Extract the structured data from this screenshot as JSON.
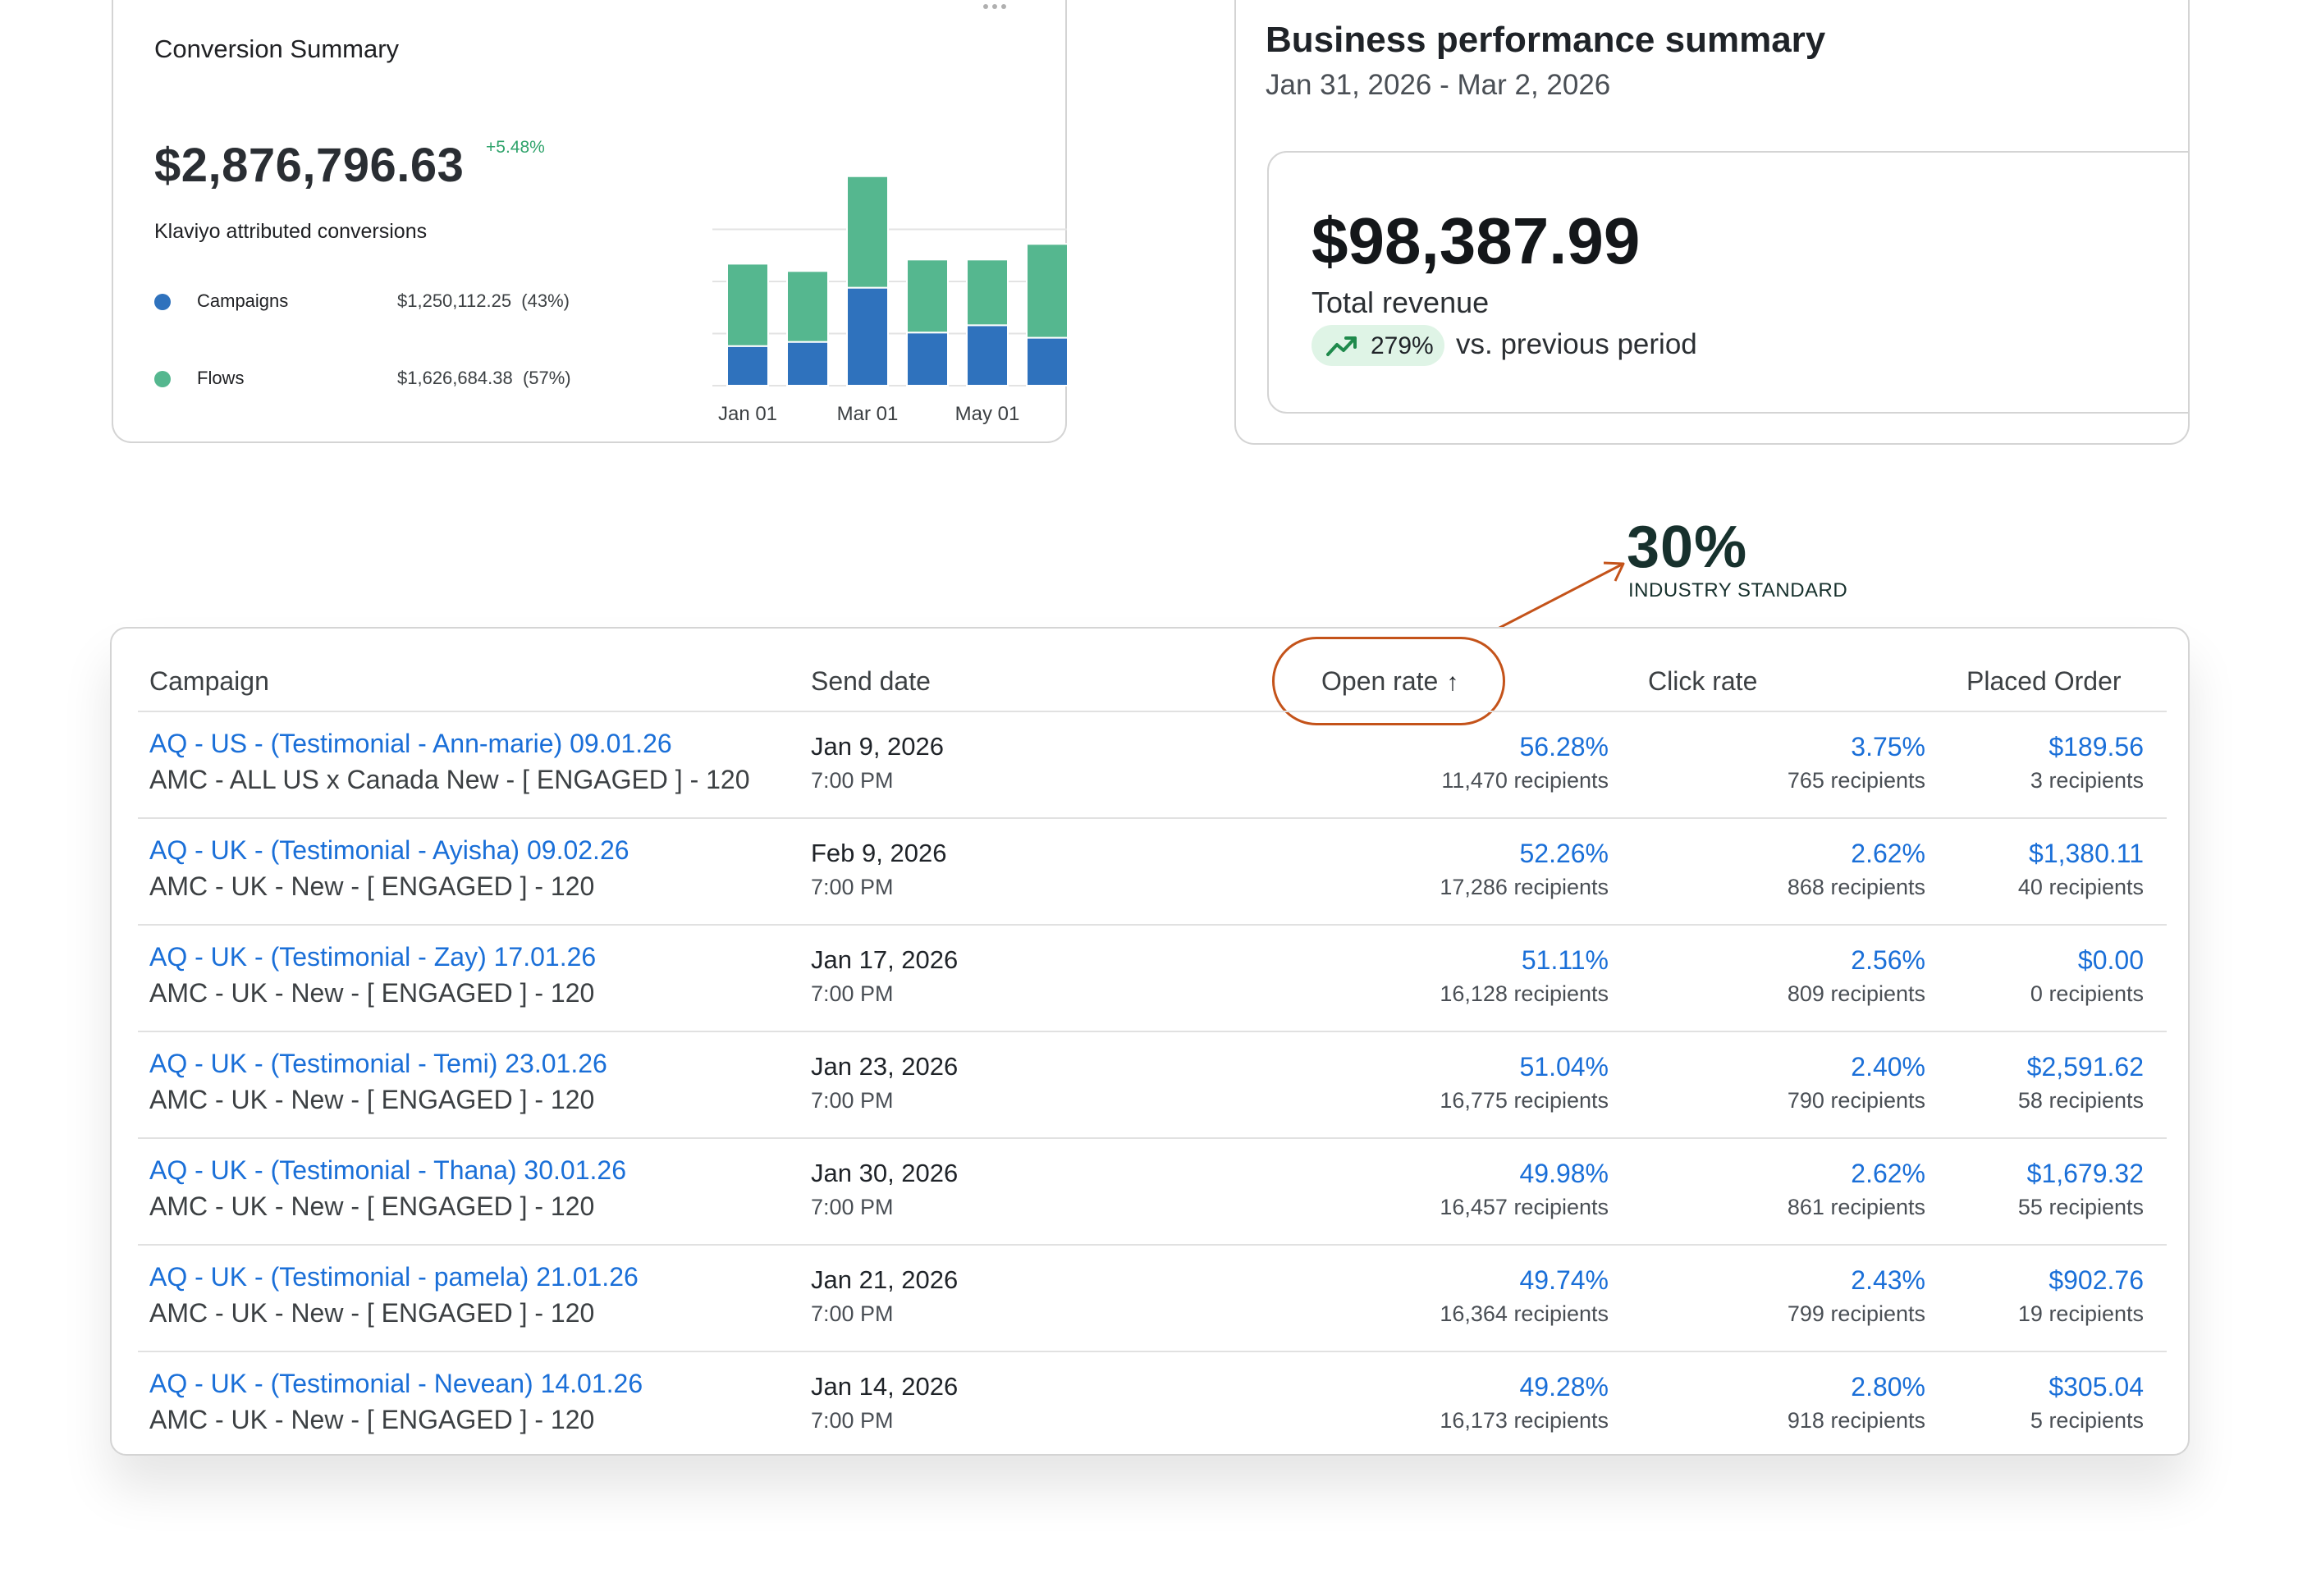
{
  "conversion_summary": {
    "title": "Conversion Summary",
    "total": "$2,876,796.63",
    "change": "+5.48%",
    "subtitle": "Klaviyo attributed conversions",
    "legend": [
      {
        "name": "Campaigns",
        "value": "$1,250,112.25",
        "share": "(43%)",
        "color": "#2f72bd"
      },
      {
        "name": "Flows",
        "value": "$1,626,684.38",
        "share": "(57%)",
        "color": "#55b78f"
      }
    ]
  },
  "chart_data": {
    "type": "bar",
    "stacked": true,
    "x_tick_labels": [
      "Jan 01",
      "Mar 01",
      "May 01"
    ],
    "series": [
      {
        "name": "Campaigns",
        "color": "#2f72bd",
        "values": [
          38,
          42,
          94,
          51,
          58,
          46
        ]
      },
      {
        "name": "Flows",
        "color": "#55b78f",
        "values": [
          79,
          68,
          107,
          70,
          63,
          90
        ]
      }
    ],
    "grid": true,
    "legend": "left"
  },
  "business_summary": {
    "title": "Business performance summary",
    "date_range": "Jan 31, 2026 - Mar 2, 2026",
    "revenue": "$98,387.99",
    "revenue_label": "Total revenue",
    "change_pct": "279%",
    "change_label": "vs. previous period"
  },
  "annotation": {
    "value": "30%",
    "label": "INDUSTRY STANDARD",
    "color": "#c4531a"
  },
  "table": {
    "headers": {
      "campaign": "Campaign",
      "send_date": "Send date",
      "open_rate": "Open rate",
      "click_rate": "Click rate",
      "placed_order": "Placed Order"
    },
    "sort_icon": "arrow-up-icon",
    "rows": [
      {
        "name": "AQ - US - (Testimonial - Ann-marie) 09.01.26",
        "list": "AMC - ALL US x Canada New - [ ENGAGED ] - 120",
        "date": "Jan 9, 2026",
        "time": "7:00 PM",
        "open": "56.28%",
        "open_recipients": "11,470 recipients",
        "click": "3.75%",
        "click_recipients": "765 recipients",
        "placed": "$189.56",
        "placed_recipients": "3 recipients"
      },
      {
        "name": "AQ - UK - (Testimonial - Ayisha) 09.02.26",
        "list": "AMC - UK - New - [ ENGAGED ] - 120",
        "date": "Feb 9, 2026",
        "time": "7:00 PM",
        "open": "52.26%",
        "open_recipients": "17,286 recipients",
        "click": "2.62%",
        "click_recipients": "868 recipients",
        "placed": "$1,380.11",
        "placed_recipients": "40 recipients"
      },
      {
        "name": "AQ - UK - (Testimonial - Zay) 17.01.26",
        "list": "AMC - UK - New - [ ENGAGED ] - 120",
        "date": "Jan 17, 2026",
        "time": "7:00 PM",
        "open": "51.11%",
        "open_recipients": "16,128 recipients",
        "click": "2.56%",
        "click_recipients": "809 recipients",
        "placed": "$0.00",
        "placed_recipients": "0 recipients"
      },
      {
        "name": "AQ - UK - (Testimonial - Temi) 23.01.26",
        "list": "AMC - UK - New - [ ENGAGED ] - 120",
        "date": "Jan 23, 2026",
        "time": "7:00 PM",
        "open": "51.04%",
        "open_recipients": "16,775 recipients",
        "click": "2.40%",
        "click_recipients": "790 recipients",
        "placed": "$2,591.62",
        "placed_recipients": "58 recipients"
      },
      {
        "name": "AQ - UK - (Testimonial - Thana) 30.01.26",
        "list": "AMC - UK - New - [ ENGAGED ] - 120",
        "date": "Jan 30, 2026",
        "time": "7:00 PM",
        "open": "49.98%",
        "open_recipients": "16,457 recipients",
        "click": "2.62%",
        "click_recipients": "861 recipients",
        "placed": "$1,679.32",
        "placed_recipients": "55 recipients"
      },
      {
        "name": "AQ - UK - (Testimonial - pamela) 21.01.26",
        "list": "AMC - UK - New - [ ENGAGED ] - 120",
        "date": "Jan 21, 2026",
        "time": "7:00 PM",
        "open": "49.74%",
        "open_recipients": "16,364 recipients",
        "click": "2.43%",
        "click_recipients": "799 recipients",
        "placed": "$902.76",
        "placed_recipients": "19 recipients"
      },
      {
        "name": "AQ - UK - (Testimonial - Nevean) 14.01.26",
        "list": "AMC - UK - New - [ ENGAGED ] - 120",
        "date": "Jan 14, 2026",
        "time": "7:00 PM",
        "open": "49.28%",
        "open_recipients": "16,173 recipients",
        "click": "2.80%",
        "click_recipients": "918 recipients",
        "placed": "$305.04",
        "placed_recipients": "5 recipients"
      }
    ]
  }
}
